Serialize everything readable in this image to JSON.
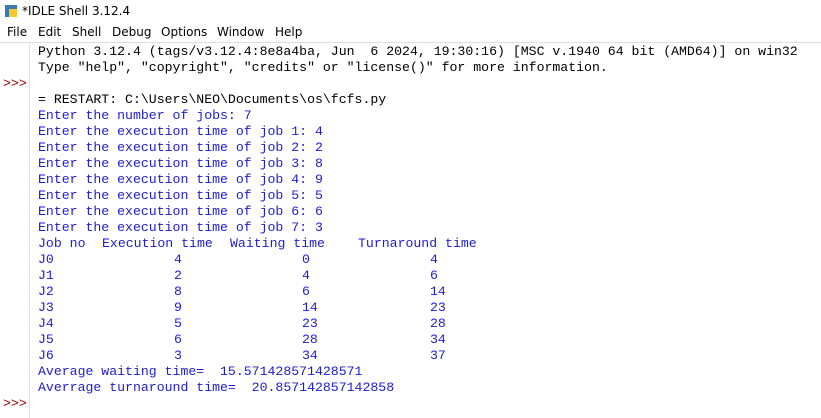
{
  "window": {
    "title": "*IDLE Shell 3.12.4"
  },
  "menu": [
    "File",
    "Edit",
    "Shell",
    "Debug",
    "Options",
    "Window",
    "Help"
  ],
  "shell": {
    "prompt": ">>>",
    "banner": [
      "Python 3.12.4 (tags/v3.12.4:8e8a4ba, Jun  6 2024, 19:30:16) [MSC v.1940 64 bit (AMD64)] on win32",
      "Type \"help\", \"copyright\", \"credits\" or \"license()\" for more information."
    ],
    "restart": "= RESTART: C:\\Users\\NEO\\Documents\\os\\fcfs.py",
    "inputs": [
      "Enter the number of jobs: 7",
      "Enter the execution time of job 1: 4",
      "Enter the execution time of job 2: 2",
      "Enter the execution time of job 3: 8",
      "Enter the execution time of job 4: 9",
      "Enter the execution time of job 5: 5",
      "Enter the execution time of job 6: 6",
      "Enter the execution time of job 7: 3"
    ],
    "table": {
      "header": [
        "Job no",
        "Execution time",
        "Waiting time",
        "Turnaround time"
      ],
      "rows": [
        [
          "J0",
          4,
          0,
          4
        ],
        [
          "J1",
          2,
          4,
          6
        ],
        [
          "J2",
          8,
          6,
          14
        ],
        [
          "J3",
          9,
          14,
          23
        ],
        [
          "J4",
          5,
          23,
          28
        ],
        [
          "J5",
          6,
          28,
          34
        ],
        [
          "J6",
          3,
          34,
          37
        ]
      ]
    },
    "averages": [
      "Average waiting time=  15.571428571428571",
      "Averrage turnaround time=  20.857142857142858"
    ]
  }
}
